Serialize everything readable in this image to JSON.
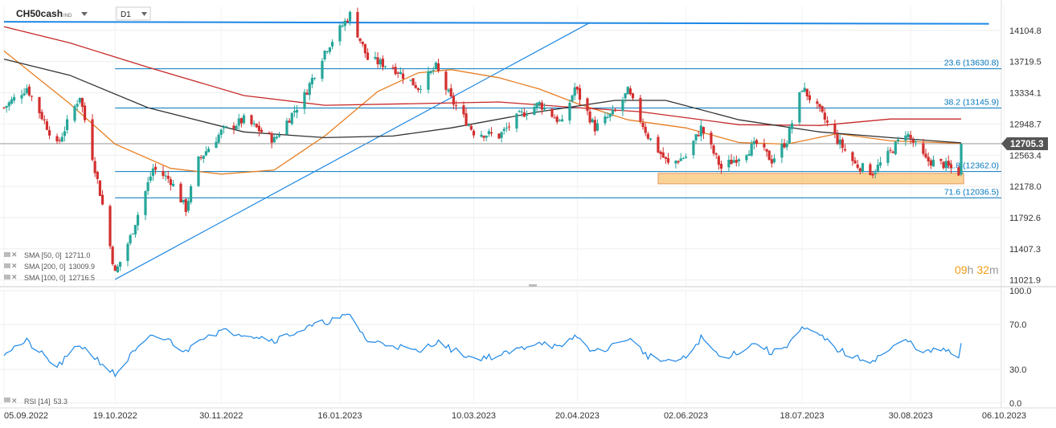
{
  "header": {
    "symbol": "CH50cash",
    "symbol_tag": "IND",
    "timeframe": "D1"
  },
  "colors": {
    "bull": "#26a69a",
    "bear": "#d32f2f",
    "trend": "#1e88e5",
    "sma50": "#e67e22",
    "sma200": "#c62828",
    "sma100": "#333333",
    "fib": "#0277bd",
    "zone": "#f5b041",
    "rsi": "#1e88e5",
    "timer": "#f39c12"
  },
  "chart_data": [
    {
      "type": "candlestick",
      "title": "",
      "y_ticks": [
        "14104.8",
        "13719.5",
        "13334.1",
        "12948.7",
        "12563.4",
        "12178.0",
        "11792.6",
        "11407.3",
        "11021.9"
      ],
      "y_tick_values": [
        14104.8,
        13719.5,
        13334.1,
        12948.7,
        12563.4,
        12178.0,
        11792.6,
        11407.3,
        11021.9
      ],
      "ylim": [
        10950,
        14400
      ],
      "x_ticks": [
        "05.09.2022",
        "19.10.2022",
        "30.11.2022",
        "16.01.2023",
        "10.03.2023",
        "20.04.2023",
        "02.06.2023",
        "18.07.2023",
        "30.08.2023",
        "06.10.2023"
      ],
      "x_tick_dates": [
        "2022-09-05",
        "2022-10-19",
        "2022-11-30",
        "2023-01-16",
        "2023-03-10",
        "2023-04-20",
        "2023-06-02",
        "2023-07-18",
        "2023-08-30",
        "2023-10-06"
      ],
      "xlim": [
        "2022-09-05",
        "2023-10-10"
      ],
      "last_price": "12705.3",
      "last_price_value": 12705.3,
      "timer": {
        "hours": "09",
        "h_label": "h",
        "minutes": "32",
        "m_label": "m"
      },
      "fib_levels": [
        {
          "label": "23.6 (13630.8)",
          "value": 13630.8
        },
        {
          "label": "38.2 (13145.9)",
          "value": 13145.9
        },
        {
          "label": "61.8 (12362.0)",
          "value": 12362.0
        },
        {
          "label": "71.6 (12036.5)",
          "value": 12036.5
        }
      ],
      "support_zone": {
        "from": "2023-05-22",
        "to": "2023-09-20",
        "low": 12210,
        "high": 12340
      },
      "resistance_line": {
        "from": [
          "2022-09-05",
          14210
        ],
        "to": [
          "2023-09-30",
          14185
        ]
      },
      "trend_line": {
        "from": [
          "2022-10-19",
          11030
        ],
        "to": [
          "2023-04-25",
          14200
        ]
      },
      "anchors": [
        [
          "2022-09-05",
          13150
        ],
        [
          "2022-09-14",
          13400
        ],
        [
          "2022-09-26",
          12680
        ],
        [
          "2022-10-05",
          13300
        ],
        [
          "2022-10-14",
          11950
        ],
        [
          "2022-10-19",
          11100
        ],
        [
          "2022-10-25",
          11550
        ],
        [
          "2022-11-03",
          12400
        ],
        [
          "2022-11-10",
          12250
        ],
        [
          "2022-11-16",
          11900
        ],
        [
          "2022-11-21",
          12500
        ],
        [
          "2022-11-30",
          12850
        ],
        [
          "2022-12-09",
          13000
        ],
        [
          "2022-12-21",
          12750
        ],
        [
          "2023-01-02",
          13300
        ],
        [
          "2023-01-10",
          13850
        ],
        [
          "2023-01-20",
          14300
        ],
        [
          "2023-01-27",
          13750
        ],
        [
          "2023-02-06",
          13650
        ],
        [
          "2023-02-16",
          13400
        ],
        [
          "2023-02-23",
          13650
        ],
        [
          "2023-03-01",
          13250
        ],
        [
          "2023-03-10",
          12850
        ],
        [
          "2023-03-20",
          12800
        ],
        [
          "2023-03-28",
          13050
        ],
        [
          "2023-04-05",
          13200
        ],
        [
          "2023-04-14",
          12950
        ],
        [
          "2023-04-19",
          13400
        ],
        [
          "2023-04-27",
          12900
        ],
        [
          "2023-05-05",
          13100
        ],
        [
          "2023-05-10",
          13350
        ],
        [
          "2023-05-18",
          12800
        ],
        [
          "2023-05-26",
          12450
        ],
        [
          "2023-06-02",
          12550
        ],
        [
          "2023-06-08",
          12900
        ],
        [
          "2023-06-16",
          12400
        ],
        [
          "2023-06-23",
          12550
        ],
        [
          "2023-06-30",
          12700
        ],
        [
          "2023-07-06",
          12500
        ],
        [
          "2023-07-12",
          12750
        ],
        [
          "2023-07-18",
          13400
        ],
        [
          "2023-07-25",
          13100
        ],
        [
          "2023-08-01",
          12750
        ],
        [
          "2023-08-08",
          12450
        ],
        [
          "2023-08-15",
          12350
        ],
        [
          "2023-08-22",
          12600
        ],
        [
          "2023-08-28",
          12850
        ],
        [
          "2023-09-05",
          12500
        ],
        [
          "2023-09-12",
          12450
        ],
        [
          "2023-09-18",
          12350
        ],
        [
          "2023-09-19",
          12705
        ]
      ],
      "sma_lines": [
        {
          "name": "SMA [50, 0]",
          "value": "12711.0",
          "color_key": "sma50",
          "end": "2023-09-19",
          "points": [
            [
              "2022-09-05",
              13850
            ],
            [
              "2022-10-01",
              13200
            ],
            [
              "2022-10-19",
              12700
            ],
            [
              "2022-11-10",
              12400
            ],
            [
              "2022-11-30",
              12330
            ],
            [
              "2022-12-21",
              12380
            ],
            [
              "2023-01-10",
              12800
            ],
            [
              "2023-01-31",
              13350
            ],
            [
              "2023-02-16",
              13580
            ],
            [
              "2023-03-01",
              13620
            ],
            [
              "2023-03-20",
              13520
            ],
            [
              "2023-04-05",
              13380
            ],
            [
              "2023-04-20",
              13200
            ],
            [
              "2023-05-10",
              13000
            ],
            [
              "2023-06-02",
              12900
            ],
            [
              "2023-06-23",
              12720
            ],
            [
              "2023-07-12",
              12700
            ],
            [
              "2023-08-01",
              12830
            ],
            [
              "2023-08-22",
              12740
            ],
            [
              "2023-09-19",
              12711
            ]
          ]
        },
        {
          "name": "SMA [200, 0]",
          "value": "13009.9",
          "color_key": "sma200",
          "end": "2023-09-19",
          "points": [
            [
              "2022-09-05",
              14150
            ],
            [
              "2022-10-01",
              13950
            ],
            [
              "2022-11-01",
              13650
            ],
            [
              "2022-12-09",
              13300
            ],
            [
              "2023-01-10",
              13180
            ],
            [
              "2023-02-16",
              13200
            ],
            [
              "2023-03-20",
              13220
            ],
            [
              "2023-04-20",
              13150
            ],
            [
              "2023-05-15",
              13100
            ],
            [
              "2023-06-23",
              12940
            ],
            [
              "2023-07-25",
              12930
            ],
            [
              "2023-08-22",
              13010
            ],
            [
              "2023-09-19",
              13010
            ]
          ]
        },
        {
          "name": "SMA [100, 0]",
          "value": "12716.5",
          "color_key": "sma100",
          "end": "2023-09-19",
          "points": [
            [
              "2022-09-05",
              13750
            ],
            [
              "2022-10-01",
              13550
            ],
            [
              "2022-11-01",
              13150
            ],
            [
              "2022-12-09",
              12850
            ],
            [
              "2023-01-10",
              12780
            ],
            [
              "2023-02-06",
              12800
            ],
            [
              "2023-03-01",
              12900
            ],
            [
              "2023-04-05",
              13100
            ],
            [
              "2023-05-05",
              13240
            ],
            [
              "2023-05-25",
              13240
            ],
            [
              "2023-06-23",
              13000
            ],
            [
              "2023-07-25",
              12850
            ],
            [
              "2023-08-22",
              12780
            ],
            [
              "2023-09-19",
              12716
            ]
          ]
        }
      ]
    },
    {
      "type": "line",
      "title": "",
      "series": [
        {
          "name": "RSI [14]",
          "value": "53.3"
        }
      ],
      "y_ticks": [
        "100.0",
        "70.0",
        "30.0",
        "0.0"
      ],
      "y_tick_values": [
        100,
        70,
        30,
        0
      ],
      "ylim": [
        0,
        100
      ],
      "anchors": [
        [
          "2022-09-05",
          45
        ],
        [
          "2022-09-14",
          55
        ],
        [
          "2022-09-26",
          32
        ],
        [
          "2022-10-05",
          52
        ],
        [
          "2022-10-14",
          35
        ],
        [
          "2022-10-19",
          25
        ],
        [
          "2022-10-25",
          42
        ],
        [
          "2022-11-03",
          60
        ],
        [
          "2022-11-10",
          55
        ],
        [
          "2022-11-16",
          45
        ],
        [
          "2022-11-21",
          58
        ],
        [
          "2022-11-30",
          64
        ],
        [
          "2022-12-09",
          62
        ],
        [
          "2022-12-21",
          56
        ],
        [
          "2023-01-02",
          66
        ],
        [
          "2023-01-10",
          72
        ],
        [
          "2023-01-20",
          78
        ],
        [
          "2023-01-27",
          55
        ],
        [
          "2023-02-06",
          52
        ],
        [
          "2023-02-16",
          45
        ],
        [
          "2023-02-23",
          55
        ],
        [
          "2023-03-01",
          48
        ],
        [
          "2023-03-10",
          40
        ],
        [
          "2023-03-20",
          42
        ],
        [
          "2023-03-28",
          48
        ],
        [
          "2023-04-05",
          55
        ],
        [
          "2023-04-14",
          48
        ],
        [
          "2023-04-19",
          60
        ],
        [
          "2023-04-27",
          45
        ],
        [
          "2023-05-05",
          52
        ],
        [
          "2023-05-10",
          58
        ],
        [
          "2023-05-18",
          42
        ],
        [
          "2023-05-26",
          36
        ],
        [
          "2023-06-02",
          40
        ],
        [
          "2023-06-08",
          58
        ],
        [
          "2023-06-16",
          40
        ],
        [
          "2023-06-23",
          46
        ],
        [
          "2023-06-30",
          54
        ],
        [
          "2023-07-06",
          44
        ],
        [
          "2023-07-12",
          52
        ],
        [
          "2023-07-18",
          66
        ],
        [
          "2023-07-25",
          60
        ],
        [
          "2023-08-01",
          48
        ],
        [
          "2023-08-08",
          40
        ],
        [
          "2023-08-15",
          38
        ],
        [
          "2023-08-22",
          48
        ],
        [
          "2023-08-28",
          56
        ],
        [
          "2023-09-05",
          45
        ],
        [
          "2023-09-12",
          48
        ],
        [
          "2023-09-18",
          40
        ],
        [
          "2023-09-19",
          53.3
        ]
      ]
    }
  ]
}
